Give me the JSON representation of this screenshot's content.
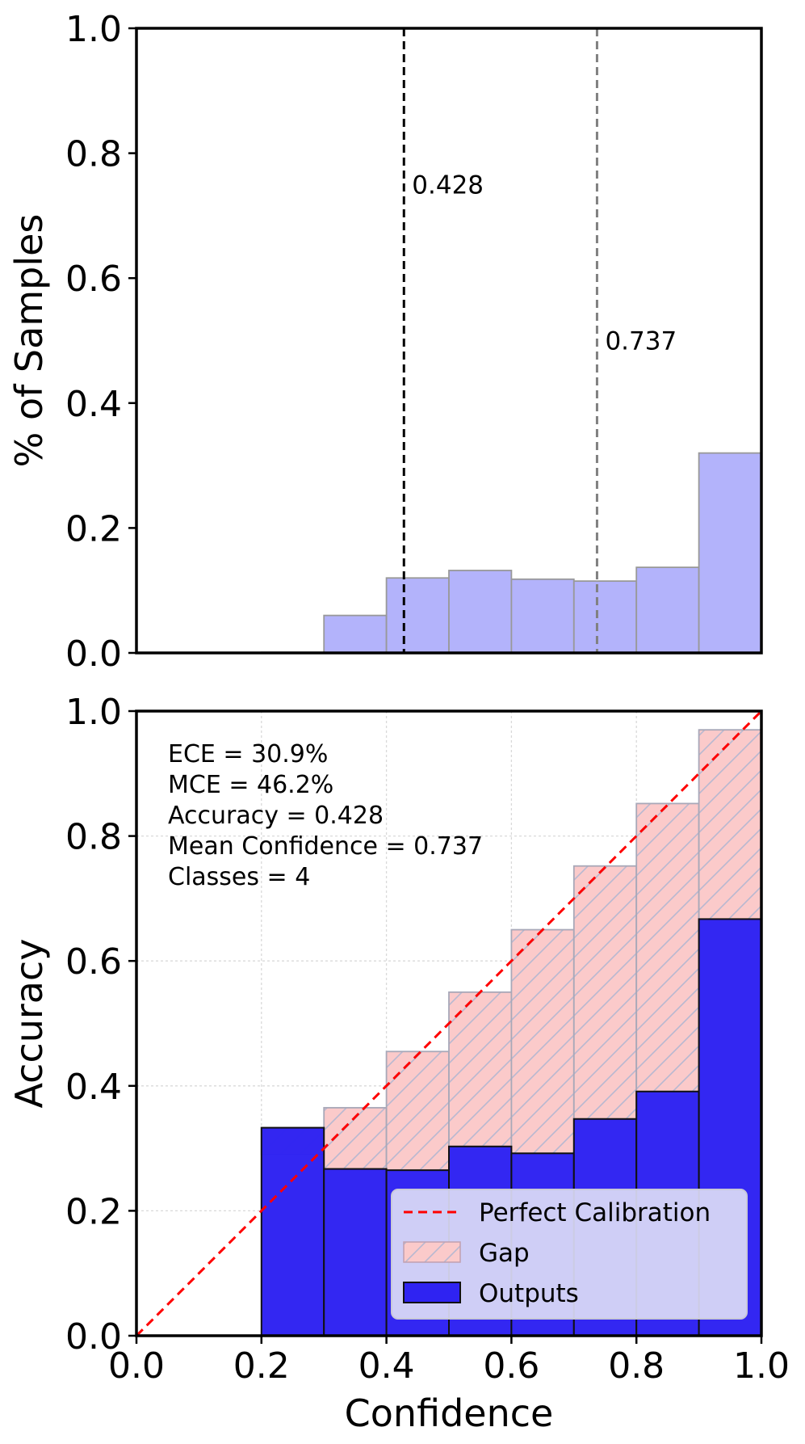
{
  "colors": {
    "hist_fill": "#b3b3fb",
    "hist_edge": "#999999",
    "output_fill": "#2f23f2",
    "output_edge": "#111111",
    "gap_fill": "#fbcaca",
    "gap_hatch": "#b8b8d0",
    "perfect_line": "#ff0000",
    "mean_acc_line": "#000000",
    "mean_conf_line": "#808080",
    "grid": "#d9d9d9"
  },
  "chart_data": [
    {
      "type": "bar",
      "ylabel": "% of Samples",
      "xlim": [
        0.0,
        1.0
      ],
      "ylim": [
        0.0,
        1.0
      ],
      "yticks": [
        "0.0",
        "0.2",
        "0.4",
        "0.6",
        "0.8",
        "1.0"
      ],
      "bin_edges": [
        0.0,
        0.1,
        0.2,
        0.3,
        0.4,
        0.5,
        0.6,
        0.7,
        0.8,
        0.9,
        1.0
      ],
      "values": [
        0.0,
        0.0,
        0.001,
        0.06,
        0.12,
        0.132,
        0.118,
        0.115,
        0.137,
        0.32
      ],
      "annotations": [
        {
          "x": 0.428,
          "text": "0.428",
          "label_y": 0.75,
          "style": "dashed-black"
        },
        {
          "x": 0.737,
          "text": "0.737",
          "label_y": 0.5,
          "style": "dashed-gray"
        }
      ],
      "grid": false
    },
    {
      "type": "bar",
      "xlabel": "Confidence",
      "ylabel": "Accuracy",
      "xlim": [
        0.0,
        1.0
      ],
      "ylim": [
        0.0,
        1.0
      ],
      "xticks": [
        "0.0",
        "0.2",
        "0.4",
        "0.6",
        "0.8",
        "1.0"
      ],
      "yticks": [
        "0.0",
        "0.2",
        "0.4",
        "0.6",
        "0.8",
        "1.0"
      ],
      "bin_edges": [
        0.2,
        0.3,
        0.4,
        0.5,
        0.6,
        0.7,
        0.8,
        0.9,
        1.0
      ],
      "series": [
        {
          "name": "Outputs",
          "values": [
            0.333,
            0.267,
            0.265,
            0.303,
            0.292,
            0.347,
            0.391,
            0.667
          ]
        },
        {
          "name": "Gap",
          "base": [
            0.333,
            0.267,
            0.265,
            0.303,
            0.292,
            0.347,
            0.391,
            0.667
          ],
          "top": [
            0.29,
            0.365,
            0.455,
            0.55,
            0.65,
            0.752,
            0.852,
            0.97
          ]
        }
      ],
      "perfect_calibration": {
        "name": "Perfect Calibration",
        "points": [
          [
            0.0,
            0.0
          ],
          [
            1.0,
            1.0
          ]
        ]
      },
      "stats_text": [
        "ECE = 30.9%",
        "MCE = 46.2%",
        "Accuracy = 0.428",
        "Mean Confidence = 0.737",
        "Classes = 4"
      ],
      "legend": {
        "position": "lower-right",
        "items": [
          "Perfect Calibration",
          "Gap",
          "Outputs"
        ]
      },
      "grid": true
    }
  ]
}
